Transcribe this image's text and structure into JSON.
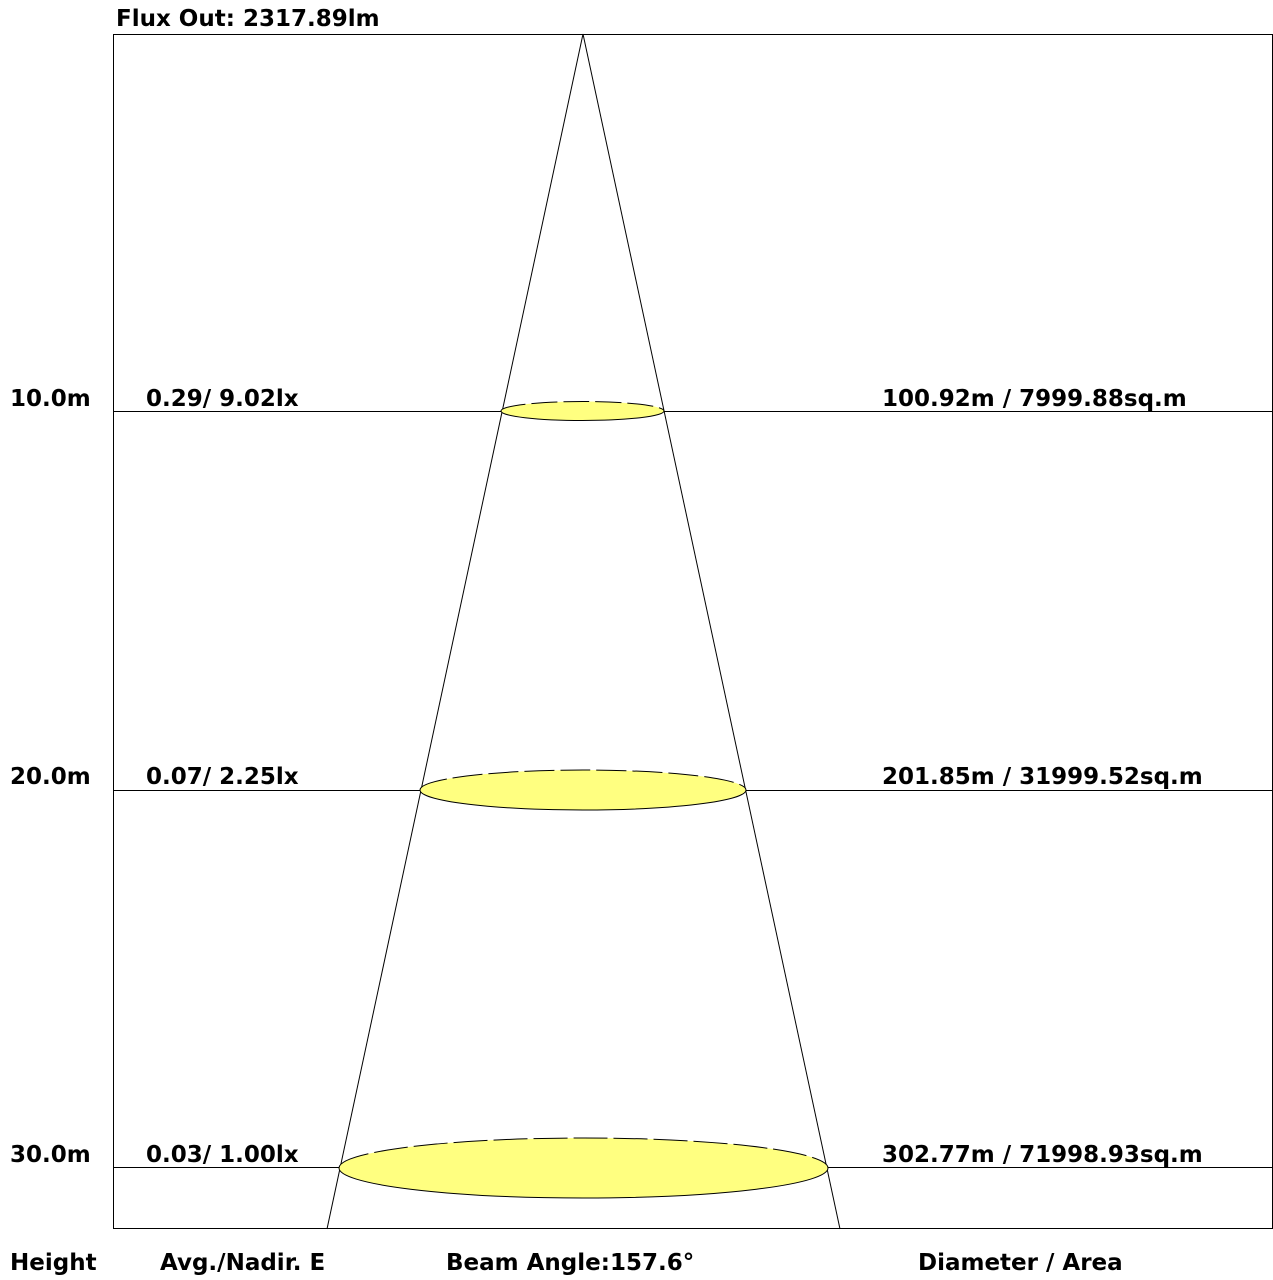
{
  "flux_out": "Flux Out: 2317.89lm",
  "levels": [
    {
      "height": "10.0m",
      "illuminance": "0.29/ 9.02lx",
      "diameter_area": "100.92m / 7999.88sq.m"
    },
    {
      "height": "20.0m",
      "illuminance": "0.07/ 2.25lx",
      "diameter_area": "201.85m / 31999.52sq.m"
    },
    {
      "height": "30.0m",
      "illuminance": "0.03/ 1.00lx",
      "diameter_area": "302.77m / 71998.93sq.m"
    }
  ],
  "footer": {
    "height_label": "Height",
    "illuminance_label": "Avg./Nadir. E",
    "beam_angle_label": "Beam Angle:",
    "beam_angle_value": "157.6°",
    "diameter_area_label": "Diameter / Area"
  },
  "colors": {
    "beam_fill": "#ffff80",
    "line": "#000000",
    "background": "#ffffff"
  }
}
